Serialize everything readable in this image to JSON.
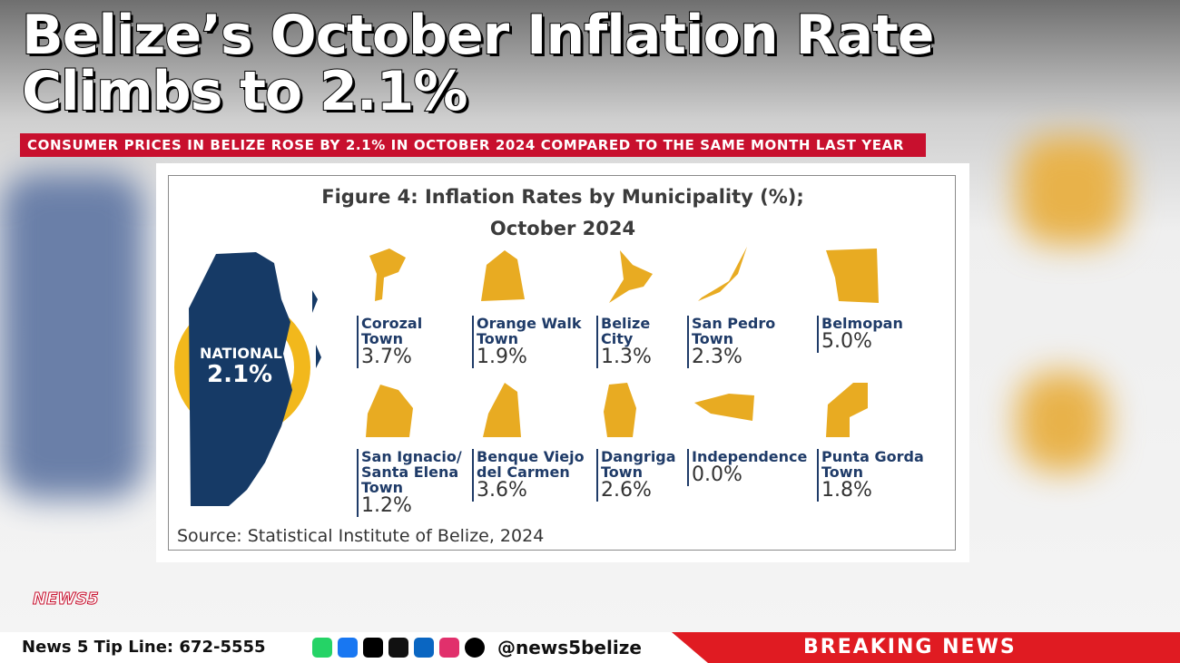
{
  "header": {
    "title_lines": [
      "Belize’s October Inflation Rate",
      "Climbs to 2.1%"
    ],
    "subtitle": "CONSUMER PRICES IN BELIZE ROSE BY 2.1% IN OCTOBER 2024 COMPARED TO THE SAME MONTH LAST YEAR"
  },
  "figure": {
    "title_lines": [
      "Figure 4: Inflation Rates by Municipality (%);",
      "October 2024"
    ],
    "national": {
      "label": "NATIONAL",
      "value": "2.1%"
    },
    "municipalities": [
      {
        "name_lines": [
          "Corozal",
          "Town"
        ],
        "value": "3.7%"
      },
      {
        "name_lines": [
          "Orange Walk",
          "Town"
        ],
        "value": "1.9%"
      },
      {
        "name_lines": [
          "Belize",
          "City"
        ],
        "value": "1.3%"
      },
      {
        "name_lines": [
          "San Pedro",
          "Town"
        ],
        "value": "2.3%"
      },
      {
        "name_lines": [
          "Belmopan"
        ],
        "value": "5.0%"
      },
      {
        "name_lines": [
          "San Ignacio/",
          "Santa Elena",
          "Town"
        ],
        "value": "1.2%"
      },
      {
        "name_lines": [
          "Benque Viejo",
          "del Carmen"
        ],
        "value": "3.6%"
      },
      {
        "name_lines": [
          "Dangriga",
          "Town"
        ],
        "value": "2.6%"
      },
      {
        "name_lines": [
          "Independence"
        ],
        "value": "0.0%"
      },
      {
        "name_lines": [
          "Punta Gorda",
          "Town"
        ],
        "value": "1.8%"
      }
    ],
    "source": "Source: Statistical Institute of Belize, 2024"
  },
  "footer": {
    "logo": "NEWS5",
    "tip_line": "News 5 Tip Line: 672-5555",
    "handle": "@news5belize",
    "breaking": "BREAKING NEWS"
  }
}
